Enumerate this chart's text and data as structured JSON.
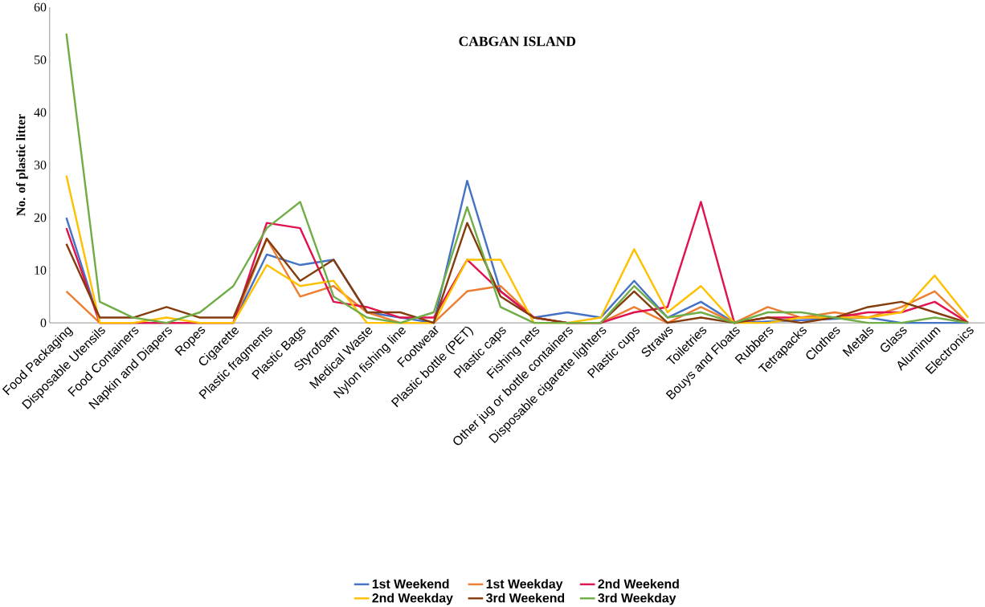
{
  "chart_data": {
    "type": "line",
    "title": "CABGAN ISLAND",
    "ylabel": "No. of plastic litter",
    "categories": [
      "Food Packaging",
      "Disposable Utensils",
      "Food Containers",
      "Napkin and Diapers",
      "Ropes",
      "Cigarette",
      "Plastic fragments",
      "Plastic Bags",
      "Styrofoam",
      "Medical Waste",
      "Nylon fishing line",
      "Footwear",
      "Plastic bottle (PET)",
      "Plastic caps",
      "Fishing nets",
      "Other jug or bottle containers",
      "Disposable cigarette lighters",
      "Plastic cups",
      "Straws",
      "Toiletries",
      "Bouys and Floats",
      "Rubbers",
      "Tetrapacks",
      "Clothes",
      "Metals",
      "Glass",
      "Aluminum",
      "Electronics"
    ],
    "series": [
      {
        "name": "1st Weekend",
        "color": "#4472c4",
        "values": [
          20,
          0,
          0,
          0,
          0,
          0,
          13,
          11,
          12,
          2,
          1,
          0,
          27,
          6,
          1,
          2,
          1,
          8,
          1,
          4,
          0,
          null,
          null,
          null,
          1,
          0,
          0,
          0
        ]
      },
      {
        "name": "1st Weekday",
        "color": "#ed7d31",
        "values": [
          6,
          0,
          0,
          0,
          0,
          0,
          16,
          5,
          7,
          2,
          0,
          0,
          6,
          7,
          1,
          0,
          0,
          3,
          0,
          3,
          0,
          3,
          1,
          2,
          1,
          3,
          6,
          0
        ]
      },
      {
        "name": "2nd Weekend",
        "color": "#e0134f",
        "values": [
          18,
          0,
          0,
          0,
          0,
          0,
          19,
          18,
          4,
          3,
          1,
          1,
          12,
          6,
          1,
          0,
          0,
          2,
          3,
          23,
          0,
          1,
          1,
          1,
          2,
          2,
          4,
          0
        ]
      },
      {
        "name": "2nd Weekday",
        "color": "#ffc000",
        "values": [
          28,
          0,
          0,
          1,
          0,
          0,
          11,
          7,
          8,
          0,
          0,
          0,
          12,
          12,
          0,
          0,
          1,
          14,
          2,
          7,
          0,
          0,
          1,
          1,
          1,
          2,
          9,
          1
        ]
      },
      {
        "name": "3rd Weekend",
        "color": "#843c0c",
        "values": [
          15,
          1,
          1,
          3,
          1,
          1,
          16,
          8,
          12,
          2,
          2,
          0,
          19,
          5,
          1,
          0,
          0,
          6,
          0,
          1,
          0,
          1,
          0,
          1,
          3,
          4,
          2,
          0
        ]
      },
      {
        "name": "3rd Weekday",
        "color": "#70ad47",
        "values": [
          55,
          4,
          1,
          0,
          2,
          7,
          18,
          23,
          5,
          1,
          0,
          2,
          22,
          3,
          0,
          0,
          0,
          7,
          1,
          2,
          0,
          2,
          2,
          1,
          0,
          0,
          1,
          0
        ]
      }
    ],
    "ylim": [
      0,
      60
    ],
    "yticks": [
      0,
      10,
      20,
      30,
      40,
      50,
      60
    ],
    "legend": "bottom",
    "grid": false,
    "line_style": "solid",
    "marker": "none"
  }
}
